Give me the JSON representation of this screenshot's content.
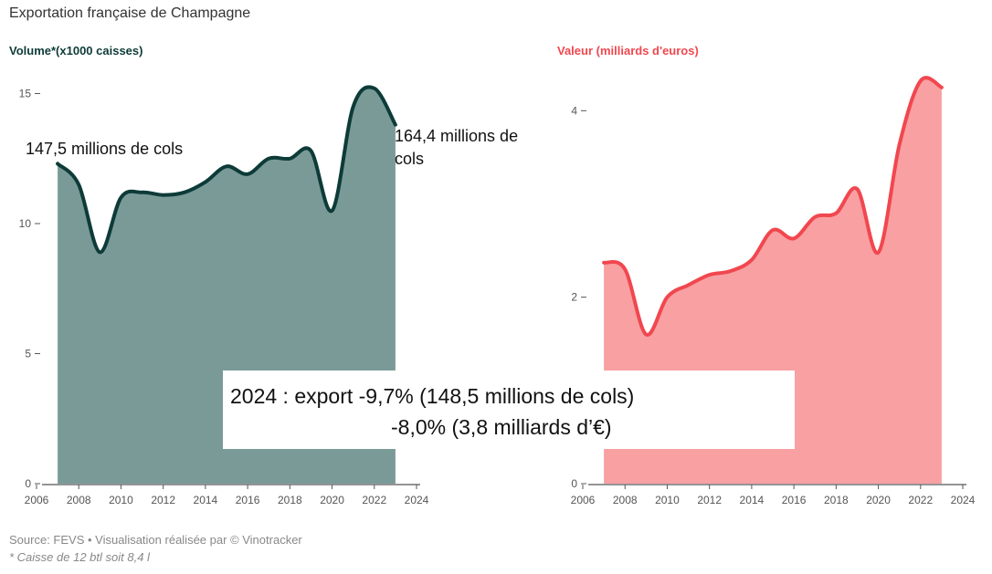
{
  "title": "Exportation française de Champagne",
  "colors": {
    "volume_line": "#0d3b38",
    "volume_fill": "#7a9a98",
    "volume_title": "#0d3b38",
    "value_line": "#f1474f",
    "value_fill": "#f8a0a2",
    "value_title": "#f1474f"
  },
  "annotations": {
    "left": "147,5 millions de cols",
    "right": "164,4 millions de cols"
  },
  "overlay": {
    "line1": "2024 : export -9,7% (148,5 millions de cols)",
    "line2": "-8,0% (3,8 milliards d’€)"
  },
  "footer": {
    "source": "Source: FEVS • Visualisation réalisée par © Vinotracker",
    "note": "* Caisse de 12 btl soit 8,4 l"
  },
  "chart_data": [
    {
      "type": "area",
      "title": "Volume*(x1000 caisses)",
      "xlim": [
        2006,
        2024
      ],
      "ylim": [
        0,
        16
      ],
      "xticks": [
        2006,
        2008,
        2010,
        2012,
        2014,
        2016,
        2018,
        2020,
        2022,
        2024
      ],
      "yticks": [
        0,
        5,
        10,
        15
      ],
      "x": [
        2007,
        2008,
        2009,
        2010,
        2011,
        2012,
        2013,
        2014,
        2015,
        2016,
        2017,
        2018,
        2019,
        2020,
        2021,
        2022,
        2023
      ],
      "values": [
        12.3,
        11.5,
        8.9,
        11.0,
        11.2,
        11.1,
        11.2,
        11.6,
        12.2,
        11.9,
        12.5,
        12.5,
        12.8,
        10.5,
        14.5,
        15.2,
        13.8
      ]
    },
    {
      "type": "area",
      "title": "Valeur (milliards d'euros)",
      "xlim": [
        2006,
        2024
      ],
      "ylim": [
        0,
        4.6
      ],
      "xticks": [
        2006,
        2008,
        2010,
        2012,
        2014,
        2016,
        2018,
        2020,
        2022,
        2024
      ],
      "yticks": [
        0,
        2,
        4
      ],
      "x": [
        2007,
        2008,
        2009,
        2010,
        2011,
        2012,
        2013,
        2014,
        2015,
        2016,
        2017,
        2018,
        2019,
        2020,
        2021,
        2022,
        2023
      ],
      "values": [
        2.37,
        2.3,
        1.6,
        2.0,
        2.13,
        2.24,
        2.28,
        2.4,
        2.72,
        2.63,
        2.86,
        2.9,
        3.16,
        2.48,
        3.64,
        4.32,
        4.25
      ]
    }
  ]
}
